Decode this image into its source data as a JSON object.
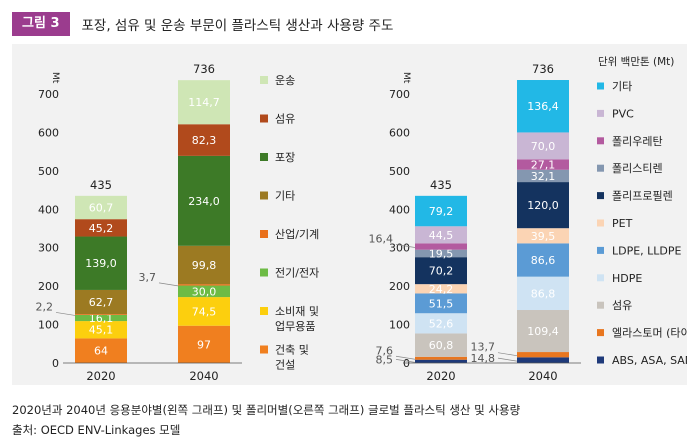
{
  "figure": {
    "badge": "그림 3",
    "title": "포장, 섬유 및 운송 부문이 플라스틱 생산과 사용량 주도",
    "caption": "2020년과 2040년 응용분야별(왼쪽 그래프) 및 폴리머별(오른쪽 그래프) 글로벌 플라스틱 생산 및 사용량",
    "source": "출처: OECD ENV-Linkages 모델"
  },
  "chart_data": [
    {
      "type": "bar",
      "stacked": true,
      "ylabel": "Mt",
      "ylim": [
        0,
        700
      ],
      "yticks": [
        0,
        100,
        200,
        300,
        400,
        500,
        600,
        700
      ],
      "categories": [
        "2020",
        "2040"
      ],
      "totals": [
        "435",
        "736"
      ],
      "series": [
        {
          "name": "건축 및 건설",
          "name_lines": [
            "건축 및",
            "건설"
          ],
          "color": "#f07f1f",
          "values": [
            64,
            97
          ],
          "labels": [
            "64",
            "97"
          ],
          "text": "#ffffff"
        },
        {
          "name": "소비재 및 업무용품",
          "name_lines": [
            "소비재 및",
            "업무용품"
          ],
          "color": "#fccf0e",
          "values": [
            45.1,
            74.5
          ],
          "labels": [
            "45,1",
            "74,5"
          ],
          "text": "#ffffff"
        },
        {
          "name": "전기/전자",
          "color": "#6dbb45",
          "values": [
            16.1,
            30.0
          ],
          "labels": [
            "16,1",
            "30,0"
          ],
          "text": "#ffffff"
        },
        {
          "name": "산업/기계",
          "color": "#e9701b",
          "values": [
            2.2,
            3.7
          ],
          "labels": [
            "2,2",
            "3,7"
          ],
          "text": "#ffffff",
          "outside_labels": true
        },
        {
          "name": "기타",
          "color": "#9c7a22",
          "values": [
            62.7,
            99.8
          ],
          "labels": [
            "62,7",
            "99,8"
          ],
          "text": "#ffffff"
        },
        {
          "name": "포장",
          "color": "#3d7a27",
          "values": [
            139.0,
            234.0
          ],
          "labels": [
            "139,0",
            "234,0"
          ],
          "text": "#ffffff"
        },
        {
          "name": "섬유",
          "color": "#b14a1c",
          "values": [
            45.2,
            82.3
          ],
          "labels": [
            "45,2",
            "82,3"
          ],
          "text": "#ffffff"
        },
        {
          "name": "운송",
          "color": "#cfe6b5",
          "values": [
            60.7,
            114.7
          ],
          "labels": [
            "60,7",
            "114,7"
          ],
          "text": "#ffffff"
        }
      ],
      "legend_order": [
        "운송",
        "섬유",
        "포장",
        "기타",
        "산업/기계",
        "전기/전자",
        "소비재 및 업무용품",
        "건축 및 건설"
      ]
    },
    {
      "type": "bar",
      "stacked": true,
      "ylabel": "Mt",
      "ylim": [
        0,
        700
      ],
      "yticks": [
        0,
        100,
        200,
        300,
        400,
        500,
        600,
        700
      ],
      "categories": [
        "2020",
        "2040"
      ],
      "totals": [
        "435",
        "736"
      ],
      "unit_note": "단위 백만톤 (Mt)",
      "series": [
        {
          "name": "ABS, ASA, SAN",
          "color": "#1f3a7a",
          "values": [
            8.5,
            14.8
          ],
          "labels": [
            "8,5",
            "14,8"
          ],
          "text": "#ffffff",
          "outside_labels": true
        },
        {
          "name": "엘라스토머 (타이어)",
          "color": "#e8761f",
          "values": [
            7.6,
            13.7
          ],
          "labels": [
            "7,6",
            "13,7"
          ],
          "text": "#ffffff",
          "outside_labels": true
        },
        {
          "name": "섬유",
          "color": "#c9c4bd",
          "values": [
            60.8,
            109.4
          ],
          "labels": [
            "60,8",
            "109,4"
          ],
          "text": "#ffffff"
        },
        {
          "name": "HDPE",
          "color": "#cfe3f3",
          "values": [
            52.6,
            86.8
          ],
          "labels": [
            "52,6",
            "86,8"
          ],
          "text": "#ffffff"
        },
        {
          "name": "LDPE, LLDPE",
          "color": "#5b9bd5",
          "values": [
            51.5,
            86.6
          ],
          "labels": [
            "51,5",
            "86,6"
          ],
          "text": "#ffffff"
        },
        {
          "name": "PET",
          "color": "#fbd4b4",
          "values": [
            24.2,
            39.5
          ],
          "labels": [
            "24,2",
            "39,5"
          ],
          "text": "#ffffff"
        },
        {
          "name": "폴리프로필렌",
          "color": "#14335f",
          "values": [
            70.2,
            120.0
          ],
          "labels": [
            "70,2",
            "120,0"
          ],
          "text": "#ffffff"
        },
        {
          "name": "폴리스티렌",
          "color": "#8497b0",
          "values": [
            19.5,
            32.1
          ],
          "labels": [
            "19,5",
            "32,1"
          ],
          "text": "#ffffff"
        },
        {
          "name": "폴리우레탄",
          "color": "#b35a9f",
          "values": [
            16.4,
            27.1
          ],
          "labels": [
            "16,4",
            "27,1"
          ],
          "text": "#ffffff",
          "outside_first": true
        },
        {
          "name": "PVC",
          "color": "#c9b6d4",
          "values": [
            44.5,
            70.0
          ],
          "labels": [
            "44,5",
            "70,0"
          ],
          "text": "#ffffff"
        },
        {
          "name": "기타",
          "color": "#22b8e6",
          "values": [
            79.2,
            136.4
          ],
          "labels": [
            "79,2",
            "136,4"
          ],
          "text": "#ffffff"
        }
      ],
      "legend_order": [
        "기타",
        "PVC",
        "폴리우레탄",
        "폴리스티렌",
        "폴리프로필렌",
        "PET",
        "LDPE, LLDPE",
        "HDPE",
        "섬유",
        "엘라스토머 (타이어)",
        "ABS, ASA, SAN"
      ]
    }
  ]
}
